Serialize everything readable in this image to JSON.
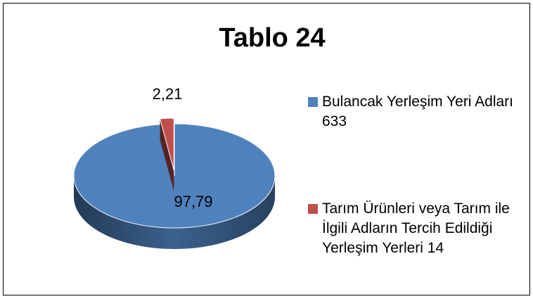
{
  "chart_data": {
    "type": "pie",
    "title": "Tablo 24",
    "categories": [
      "Bulancak Yerleşim Yeri Adları 633",
      "Tarım Ürünleri veya Tarım ile İlgili Adların Tercih Edildiği Yerleşim Yerleri 14"
    ],
    "values": [
      97.79,
      2.21
    ],
    "value_labels": [
      "97,79",
      "2,21"
    ],
    "colors": [
      "#4f81bd",
      "#c0504d"
    ],
    "legend": "right"
  }
}
